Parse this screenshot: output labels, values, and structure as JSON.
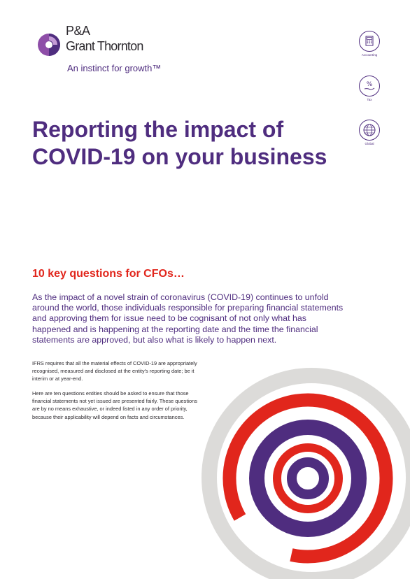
{
  "logo": {
    "line1": "P&A",
    "line2": "Grant Thornton",
    "tagline": "An instinct for growth™",
    "brand_purple": "#4f2d7f",
    "brand_violet": "#8e4ea8"
  },
  "side_icons": [
    {
      "icon": "calculator-icon",
      "label": "Accounting"
    },
    {
      "icon": "hand-percent-icon",
      "label": "Tax"
    },
    {
      "icon": "globe-icon",
      "label": "Global"
    }
  ],
  "title": "Reporting the impact of COVID-19 on your business",
  "subtitle": "10 key questions for CFOs…",
  "lead": "As the impact of a novel strain of coronavirus (COVID-19) continues to unfold around the world, those individuals responsible for preparing financial statements and approving them for issue need to be cognisant of not only what has happened and is happening at the reporting date and the time the financial statements are approved, but also what is likely to happen next.",
  "paragraphs": [
    "IFRS requires that all the material effects of COVID-19 are appropriately recognised, measured and disclosed at the entity's reporting date; be it interim or at year-end.",
    "Here are ten questions entities should be asked to ensure that those financial statements not yet issued are presented fairly. These questions are by no means exhaustive, or indeed listed in any order of priority, because their applicability will depend on facts and circumstances."
  ],
  "colors": {
    "purple": "#4f2d7f",
    "red": "#e1261c",
    "grey": "#dcdbd9"
  }
}
